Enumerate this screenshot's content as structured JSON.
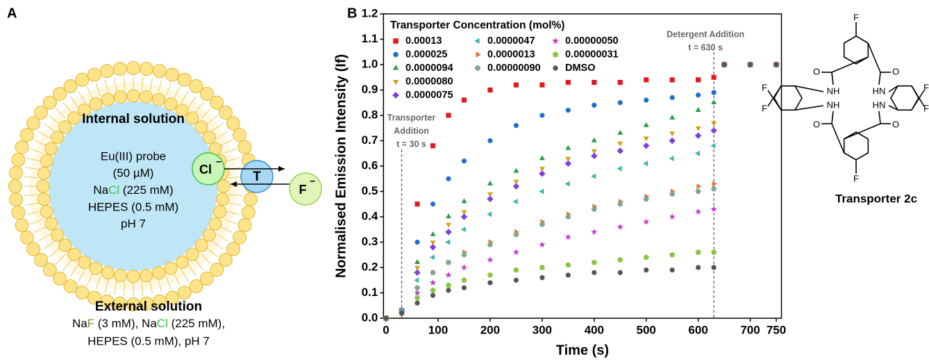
{
  "panel_labels": [
    "A",
    "B"
  ],
  "vesicle": {
    "internal_title": "Internal solution",
    "internal_lines": [
      "Eu(III) probe",
      "(50 µM)"
    ],
    "nacl": [
      "Na",
      "Cl",
      " (225 mM)"
    ],
    "internal_rest": [
      "HEPES (0.5 mM)",
      "pH 7"
    ],
    "chloride": "Cl",
    "fluoride": "F",
    "charge": "−",
    "transporter": "T",
    "external_title": "External solution",
    "external_line1": [
      "Na",
      "F",
      " (3 mM), Na",
      "Cl",
      " (225 mM),"
    ],
    "external_line2": "HEPES (0.5 mM), pH 7"
  },
  "structure": {
    "fluorine": "F",
    "oxygen": "O",
    "amide_left": "NH",
    "amide_right": "HN",
    "name": "Transporter 2c"
  },
  "chart_data": {
    "type": "scatter",
    "xlabel": "Time (s)",
    "ylabel": "Normalised Emission Intensity (If)",
    "legend_title": "Transporter Concentration (mol%)",
    "xlim": [
      -5,
      760
    ],
    "ylim": [
      0,
      1.2
    ],
    "xticks": [
      0,
      100,
      200,
      300,
      400,
      500,
      600,
      700,
      750
    ],
    "yticks": [
      {
        "value": 0,
        "label": "0.0"
      },
      0.1,
      0.2,
      0.3,
      0.4,
      0.5,
      0.6,
      0.7,
      0.8,
      0.9,
      {
        "value": 1,
        "label": "1.0"
      },
      1.1,
      1.2
    ],
    "annotations": [
      {
        "x": 30,
        "lines": [
          "Transporter",
          "Addition",
          "t = 30 s"
        ]
      },
      {
        "x": 630,
        "lines": [
          "Detergent Addition",
          "t = 630 s"
        ]
      }
    ],
    "x": [
      0,
      30,
      60,
      90,
      120,
      150,
      200,
      250,
      300,
      350,
      400,
      450,
      500,
      550,
      600,
      630,
      650,
      700,
      750
    ],
    "series": [
      {
        "name": "0.00013",
        "color": "#e31a1c",
        "marker": "square",
        "values": [
          0,
          0.03,
          0.45,
          0.68,
          0.8,
          0.86,
          0.9,
          0.92,
          0.92,
          0.93,
          0.93,
          0.93,
          0.94,
          0.94,
          0.94,
          0.95,
          1.0,
          1.0,
          1.0
        ]
      },
      {
        "name": "0.000025",
        "color": "#1f6fd1",
        "marker": "circle",
        "values": [
          0,
          0.03,
          0.3,
          0.45,
          0.55,
          0.62,
          0.7,
          0.76,
          0.8,
          0.82,
          0.84,
          0.85,
          0.86,
          0.87,
          0.88,
          0.89,
          1.0,
          1.0,
          1.0
        ]
      },
      {
        "name": "0.0000094",
        "color": "#2a9d4b",
        "marker": "triangle-up",
        "values": [
          0,
          0.03,
          0.22,
          0.33,
          0.4,
          0.46,
          0.53,
          0.58,
          0.63,
          0.67,
          0.7,
          0.73,
          0.76,
          0.79,
          0.82,
          0.85,
          1.0,
          1.0,
          1.0
        ]
      },
      {
        "name": "0.0000080",
        "color": "#d4a017",
        "marker": "triangle-down",
        "values": [
          0,
          0.03,
          0.2,
          0.3,
          0.37,
          0.42,
          0.49,
          0.54,
          0.59,
          0.63,
          0.66,
          0.69,
          0.71,
          0.73,
          0.75,
          0.77,
          1.0,
          1.0,
          1.0
        ]
      },
      {
        "name": "0.0000075",
        "color": "#7b3fe4",
        "marker": "diamond",
        "values": [
          0,
          0.03,
          0.18,
          0.28,
          0.34,
          0.4,
          0.47,
          0.52,
          0.57,
          0.61,
          0.64,
          0.66,
          0.68,
          0.7,
          0.72,
          0.74,
          1.0,
          1.0,
          1.0
        ]
      },
      {
        "name": "0.0000047",
        "color": "#3bb6b0",
        "marker": "triangle-left",
        "values": [
          0,
          0.03,
          0.15,
          0.24,
          0.3,
          0.35,
          0.41,
          0.46,
          0.5,
          0.53,
          0.56,
          0.59,
          0.61,
          0.63,
          0.65,
          0.68,
          1.0,
          1.0,
          1.0
        ]
      },
      {
        "name": "0.0000013",
        "color": "#e8742a",
        "marker": "triangle-right",
        "values": [
          0,
          0.02,
          0.12,
          0.18,
          0.22,
          0.26,
          0.3,
          0.34,
          0.38,
          0.41,
          0.44,
          0.46,
          0.48,
          0.5,
          0.52,
          0.53,
          1.0,
          1.0,
          1.0
        ]
      },
      {
        "name": "0.00000090",
        "color": "#7fa891",
        "marker": "hexagon",
        "values": [
          0,
          0.02,
          0.12,
          0.18,
          0.22,
          0.25,
          0.29,
          0.33,
          0.37,
          0.4,
          0.43,
          0.45,
          0.47,
          0.49,
          0.5,
          0.51,
          1.0,
          1.0,
          1.0
        ]
      },
      {
        "name": "0.00000050",
        "color": "#c03cc8",
        "marker": "star",
        "values": [
          0,
          0.02,
          0.1,
          0.14,
          0.17,
          0.2,
          0.23,
          0.26,
          0.29,
          0.32,
          0.34,
          0.36,
          0.38,
          0.4,
          0.42,
          0.43,
          1.0,
          1.0,
          1.0
        ]
      },
      {
        "name": "0.00000031",
        "color": "#8bc53f",
        "marker": "pentagon",
        "values": [
          0,
          0.02,
          0.08,
          0.11,
          0.13,
          0.15,
          0.17,
          0.19,
          0.2,
          0.21,
          0.22,
          0.23,
          0.24,
          0.25,
          0.26,
          0.26,
          1.0,
          1.0,
          1.0
        ]
      },
      {
        "name": "DMSO",
        "color": "#555555",
        "marker": "circle",
        "values": [
          0,
          0.02,
          0.06,
          0.09,
          0.11,
          0.12,
          0.14,
          0.15,
          0.16,
          0.17,
          0.18,
          0.18,
          0.19,
          0.19,
          0.2,
          0.2,
          1.0,
          1.0,
          1.0
        ]
      }
    ]
  }
}
